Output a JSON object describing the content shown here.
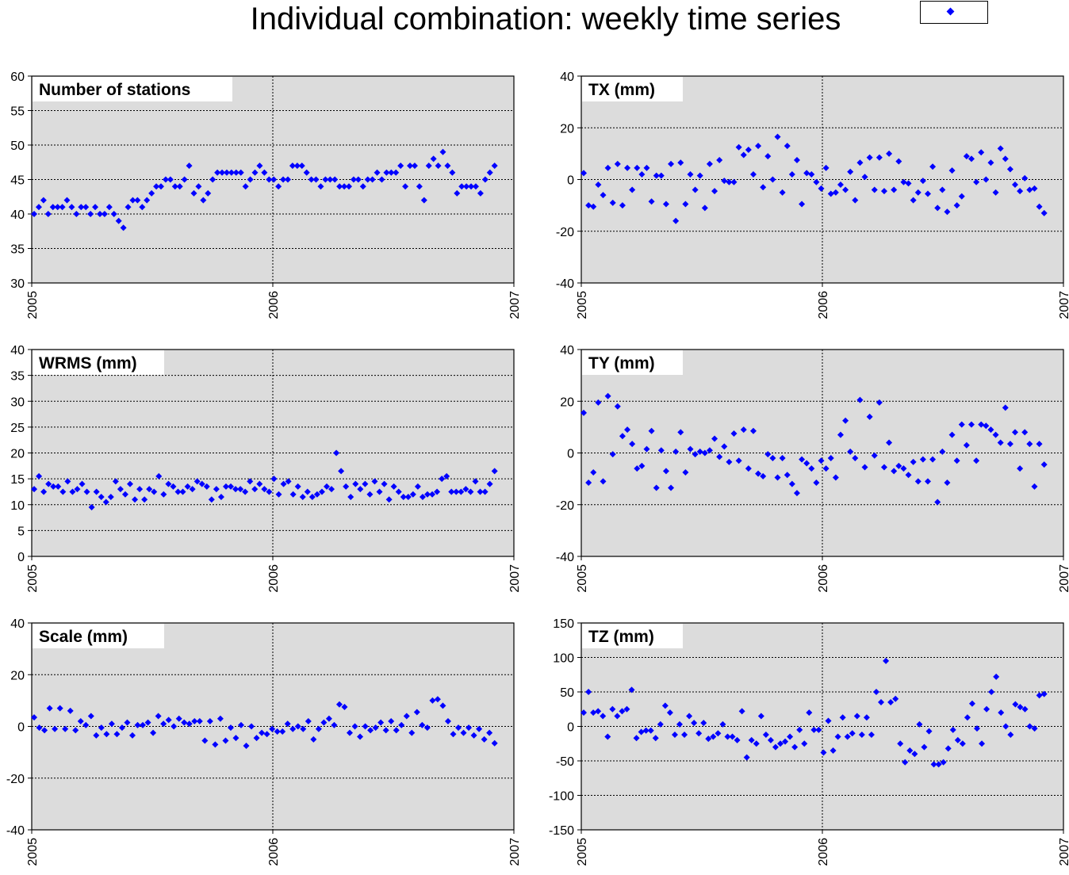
{
  "title": "Individual combination: weekly time series",
  "legend": {
    "label": "",
    "color": "#0000ff",
    "marker": "diamond"
  },
  "colors": {
    "marker": "#0000ff",
    "plot_bg": "#dcdcdc",
    "grid": "#000000"
  },
  "chart_data": [
    {
      "id": "stations",
      "type": "scatter",
      "title": "Number of stations",
      "xticks": [
        "2005",
        "2006",
        "2007"
      ],
      "xlim": [
        2005,
        2007
      ],
      "ylim": [
        30,
        60
      ],
      "yticks": [
        30,
        35,
        40,
        45,
        50,
        55,
        60
      ],
      "ytick_labels": [
        "30",
        "35",
        "40",
        "45",
        "50",
        "55",
        "60"
      ],
      "grid": true,
      "y": [
        40,
        41,
        42,
        40,
        41,
        41,
        41,
        42,
        41,
        40,
        41,
        41,
        40,
        41,
        40,
        40,
        41,
        40,
        39,
        38,
        41,
        42,
        42,
        41,
        42,
        43,
        44,
        44,
        45,
        45,
        44,
        44,
        45,
        47,
        43,
        44,
        42,
        43,
        45,
        46,
        46,
        46,
        46,
        46,
        46,
        44,
        45,
        46,
        47,
        46,
        45,
        45,
        44,
        45,
        45,
        47,
        47,
        47,
        46,
        45,
        45,
        44,
        45,
        45,
        45,
        44,
        44,
        44,
        45,
        45,
        44,
        45,
        45,
        46,
        45,
        46,
        46,
        46,
        47,
        44,
        47,
        47,
        44,
        42,
        47,
        48,
        47,
        49,
        47,
        46,
        43,
        44,
        44,
        44,
        44,
        43,
        45,
        46,
        47
      ]
    },
    {
      "id": "tx",
      "type": "scatter",
      "title": "TX (mm)",
      "xticks": [
        "2005",
        "2006",
        "2007"
      ],
      "xlim": [
        2005,
        2007
      ],
      "ylim": [
        -40,
        40
      ],
      "yticks": [
        -40,
        -20,
        0,
        20,
        40
      ],
      "ytick_labels": [
        "-40",
        "-20",
        "0",
        "20",
        "40"
      ],
      "grid": true,
      "y": [
        2.5,
        -10,
        -10.5,
        -2,
        -6,
        4.5,
        -9,
        6,
        -10,
        4.5,
        -4,
        4.5,
        2,
        4.5,
        -8.5,
        1.5,
        1.5,
        -9.5,
        6,
        -16,
        6.5,
        -9.5,
        2,
        -4,
        1.5,
        -11,
        6,
        -4.5,
        7.5,
        -0.5,
        -1,
        -1,
        12.5,
        9.5,
        11.5,
        2,
        13,
        -3,
        9,
        0,
        16.5,
        -5,
        13,
        2,
        7.5,
        -9.5,
        2.5,
        2,
        -1,
        -3.5,
        4.5,
        -5.5,
        -5,
        -2,
        -4,
        3,
        -8,
        6.5,
        1,
        8.5,
        -4,
        8.5,
        -4.5,
        10,
        -4,
        7,
        -1,
        -1.5,
        -8,
        -5,
        -0.5,
        -5.5,
        5,
        -11,
        -4,
        -12.5,
        3.5,
        -10,
        -6.5,
        9,
        8,
        -1,
        10.5,
        0,
        6.5,
        -5,
        12,
        8,
        4,
        -2,
        -4.5,
        0.5,
        -4,
        -3.5,
        -10.5,
        -13
      ]
    },
    {
      "id": "wrms",
      "type": "scatter",
      "title": "WRMS (mm)",
      "xticks": [
        "2005",
        "2006",
        "2007"
      ],
      "xlim": [
        2005,
        2007
      ],
      "ylim": [
        0,
        40
      ],
      "yticks": [
        0,
        5,
        10,
        15,
        20,
        25,
        30,
        35,
        40
      ],
      "ytick_labels": [
        "0",
        "5",
        "10",
        "15",
        "20",
        "25",
        "30",
        "35",
        "40"
      ],
      "grid": true,
      "y": [
        13,
        15.5,
        12.5,
        14,
        13.5,
        13.5,
        12.5,
        14.5,
        12.5,
        13,
        14,
        12.5,
        9.5,
        12.5,
        11.5,
        10.5,
        11.5,
        14.5,
        13,
        12,
        14,
        11,
        13,
        11,
        13,
        12.5,
        15.5,
        12,
        14,
        13.5,
        12.5,
        12.5,
        13.5,
        13,
        14.5,
        14,
        13.5,
        11,
        13,
        11.5,
        13.5,
        13.5,
        13,
        13,
        12.5,
        14.5,
        13,
        14,
        13,
        12.5,
        15,
        12,
        14,
        14.5,
        12,
        13.5,
        11.5,
        12.5,
        11.5,
        12,
        12.5,
        13.5,
        13,
        20,
        16.5,
        13.5,
        11.5,
        14,
        13,
        14,
        12,
        14.5,
        12.5,
        14,
        11,
        13.5,
        12.5,
        11.5,
        11.5,
        12,
        13.5,
        11.5,
        12,
        12,
        12.5,
        15,
        15.5,
        12.5,
        12.5,
        12.5,
        13,
        12.5,
        14.5,
        12.5,
        12.5,
        14,
        16.5
      ]
    },
    {
      "id": "ty",
      "type": "scatter",
      "title": "TY (mm)",
      "xticks": [
        "2005",
        "2006",
        "2007"
      ],
      "xlim": [
        2005,
        2007
      ],
      "ylim": [
        -40,
        40
      ],
      "yticks": [
        -40,
        -20,
        0,
        20,
        40
      ],
      "ytick_labels": [
        "-40",
        "-20",
        "0",
        "20",
        "40"
      ],
      "grid": true,
      "y": [
        15.5,
        -11.5,
        -7.5,
        19.5,
        -11,
        22,
        -0.5,
        18,
        6.5,
        9,
        3.5,
        -6,
        -5,
        1.5,
        8.5,
        -13.5,
        1,
        -7,
        -13.5,
        0.5,
        8,
        -7.5,
        1.5,
        -0.5,
        0.5,
        0,
        1,
        5.5,
        -1.5,
        2.5,
        -3.5,
        7.5,
        -3,
        9,
        -6,
        8.5,
        -8,
        -9,
        -0.5,
        -2,
        -9.5,
        -2,
        -8.5,
        -12,
        -15.5,
        -2.5,
        -4,
        -6,
        -11.5,
        -3,
        -6,
        -2,
        -9.5,
        7,
        12.5,
        0.5,
        -2,
        20.5,
        -5.5,
        14,
        -1,
        19.5,
        -5.5,
        4,
        -7,
        -5,
        -6,
        -8.5,
        -3.5,
        -11,
        -2.5,
        -11,
        -2.5,
        -19,
        0.5,
        -11.5,
        7,
        -3,
        11,
        3,
        11,
        -3,
        11,
        10.5,
        9,
        7,
        4,
        17.5,
        3.5,
        8,
        -6,
        8,
        3.5,
        -13,
        3.5,
        -4.5
      ]
    },
    {
      "id": "scale",
      "type": "scatter",
      "title": "Scale (mm)",
      "xticks": [
        "2005",
        "2006",
        "2007"
      ],
      "xlim": [
        2005,
        2007
      ],
      "ylim": [
        -40,
        40
      ],
      "yticks": [
        -40,
        -20,
        0,
        20,
        40
      ],
      "ytick_labels": [
        "-40",
        "-20",
        "0",
        "20",
        "40"
      ],
      "grid": true,
      "y": [
        3.5,
        -0.5,
        -1.5,
        7,
        -1,
        7,
        -1,
        6,
        -1.5,
        2,
        0.5,
        4,
        -3.5,
        -0.5,
        -3,
        1,
        -3,
        -0.5,
        1.5,
        -3.5,
        0.5,
        0.5,
        1.5,
        -2.5,
        4,
        1,
        2.5,
        0,
        3,
        1.5,
        1,
        2,
        2,
        -5.5,
        2,
        -7,
        3,
        -5.5,
        -0.5,
        -4.5,
        0.5,
        -7.5,
        0,
        -4.5,
        -2.5,
        -3,
        -1,
        -2,
        -2,
        1,
        -1,
        0,
        -1,
        2,
        -5,
        -1,
        1.5,
        3,
        0.5,
        8.5,
        7.5,
        -2.5,
        0,
        -4,
        0,
        -1.5,
        -0.5,
        1.5,
        -1.5,
        2,
        -1.5,
        0.5,
        4,
        -2.5,
        5.5,
        0.5,
        -0.5,
        10,
        10.5,
        8,
        2,
        -3,
        -0.5,
        -2.5,
        -0.5,
        -3.5,
        -1,
        -5,
        -2.5,
        -6.5
      ]
    },
    {
      "id": "tz",
      "type": "scatter",
      "title": "TZ (mm)",
      "xticks": [
        "2005",
        "2006",
        "2007"
      ],
      "xlim": [
        2005,
        2007
      ],
      "ylim": [
        -150,
        150
      ],
      "yticks": [
        -150,
        -100,
        -50,
        0,
        50,
        100,
        150
      ],
      "ytick_labels": [
        "-150",
        "-100",
        "-50",
        "0",
        "50",
        "100",
        "150"
      ],
      "grid": true,
      "y": [
        20,
        50,
        20,
        22,
        15,
        -15,
        25,
        15,
        22,
        25,
        53,
        -17,
        -8,
        -6,
        -6,
        -17,
        3,
        30,
        20,
        -12,
        3,
        -12,
        15,
        5,
        -10,
        5,
        -18,
        -15,
        -10,
        3,
        -15,
        -15,
        -20,
        22,
        -45,
        -20,
        -25,
        15,
        -12,
        -20,
        -30,
        -25,
        -22,
        -15,
        -30,
        -5,
        -25,
        20,
        -5,
        -5,
        -38,
        8,
        -35,
        -15,
        13,
        -15,
        -10,
        15,
        -12,
        13,
        -12,
        50,
        35,
        95,
        35,
        40,
        -25,
        -52,
        -35,
        -40,
        3,
        -30,
        -7,
        -55,
        -55,
        -52,
        -32,
        -5,
        -20,
        -25,
        13,
        33,
        -3,
        -25,
        25,
        50,
        72,
        20,
        0,
        -12,
        32,
        28,
        25,
        0,
        -3,
        45,
        47
      ]
    }
  ]
}
